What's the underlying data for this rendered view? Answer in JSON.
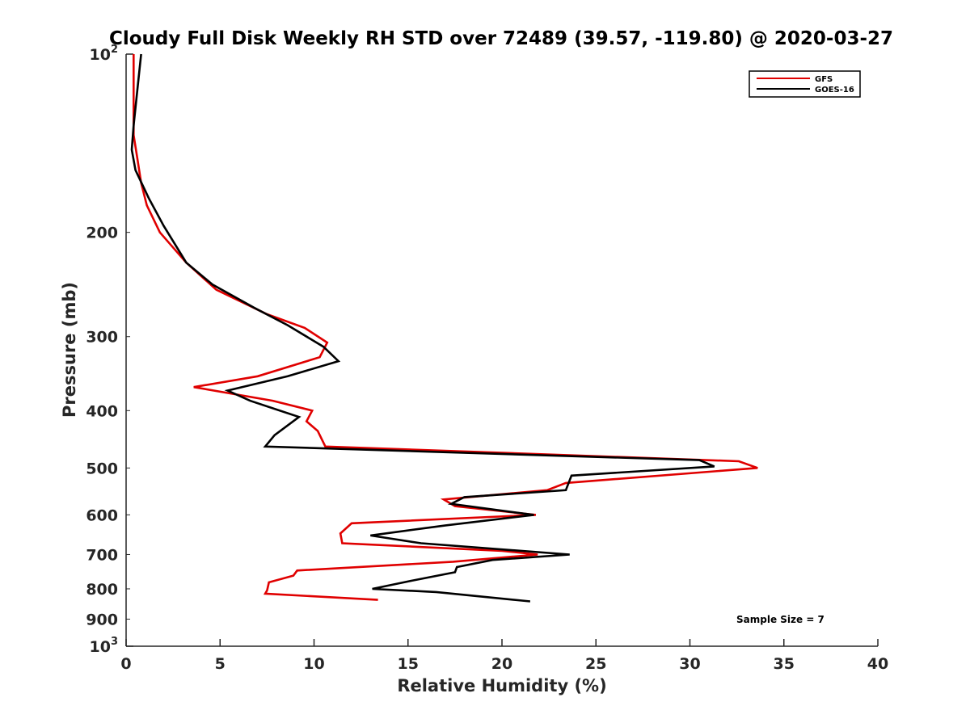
{
  "chart_data": {
    "type": "line",
    "title": "Cloudy Full Disk Weekly RH STD over 72489 (39.57, -119.80) @ 2020-03-27",
    "xlabel": "Relative Humidity (%)",
    "ylabel": "Pressure (mb)",
    "xlim": [
      0,
      40
    ],
    "ylim": [
      100,
      1000
    ],
    "yscale": "log",
    "y_reversed": true,
    "grid": false,
    "legend_position": "top-right",
    "x_ticks": [
      {
        "value": 0,
        "label": "0"
      },
      {
        "value": 5,
        "label": "5"
      },
      {
        "value": 10,
        "label": "10"
      },
      {
        "value": 15,
        "label": "15"
      },
      {
        "value": 20,
        "label": "20"
      },
      {
        "value": 25,
        "label": "25"
      },
      {
        "value": 30,
        "label": "30"
      },
      {
        "value": 35,
        "label": "35"
      },
      {
        "value": 40,
        "label": "40"
      }
    ],
    "y_ticks": [
      {
        "value": 100,
        "base": "10",
        "exp": "2"
      },
      {
        "value": 200,
        "label": "200"
      },
      {
        "value": 300,
        "label": "300"
      },
      {
        "value": 400,
        "label": "400"
      },
      {
        "value": 500,
        "label": "500"
      },
      {
        "value": 600,
        "label": "600"
      },
      {
        "value": 700,
        "label": "700"
      },
      {
        "value": 800,
        "label": "800"
      },
      {
        "value": 900,
        "label": "900"
      },
      {
        "value": 1000,
        "base": "10",
        "exp": "3"
      }
    ],
    "series": [
      {
        "name": "GFS",
        "color": "#e00000",
        "points": [
          [
            0.4,
            100
          ],
          [
            0.4,
            112
          ],
          [
            0.4,
            125
          ],
          [
            0.4,
            137
          ],
          [
            0.6,
            150
          ],
          [
            0.8,
            165
          ],
          [
            1.1,
            180
          ],
          [
            1.8,
            200
          ],
          [
            3.2,
            225
          ],
          [
            4.8,
            250
          ],
          [
            7.5,
            275
          ],
          [
            9.5,
            290
          ],
          [
            10.7,
            307
          ],
          [
            10.3,
            325
          ],
          [
            7.0,
            350
          ],
          [
            3.6,
            365
          ],
          [
            7.8,
            385
          ],
          [
            9.9,
            400
          ],
          [
            9.6,
            417
          ],
          [
            10.2,
            433
          ],
          [
            10.6,
            460
          ],
          [
            32.6,
            487
          ],
          [
            33.6,
            500
          ],
          [
            23.4,
            530
          ],
          [
            22.4,
            545
          ],
          [
            16.9,
            565
          ],
          [
            17.5,
            580
          ],
          [
            21.8,
            600
          ],
          [
            12.0,
            620
          ],
          [
            11.4,
            645
          ],
          [
            11.5,
            670
          ],
          [
            20.0,
            690
          ],
          [
            21.9,
            700
          ],
          [
            17.4,
            720
          ],
          [
            9.1,
            745
          ],
          [
            8.9,
            760
          ],
          [
            7.6,
            780
          ],
          [
            7.5,
            805
          ],
          [
            7.4,
            815
          ],
          [
            13.4,
            835
          ]
        ]
      },
      {
        "name": "GOES-16",
        "color": "#000000",
        "points": [
          [
            0.8,
            100
          ],
          [
            0.6,
            115
          ],
          [
            0.4,
            132
          ],
          [
            0.3,
            145
          ],
          [
            0.5,
            157
          ],
          [
            1.2,
            175
          ],
          [
            2.0,
            195
          ],
          [
            3.2,
            225
          ],
          [
            4.6,
            245
          ],
          [
            6.8,
            268
          ],
          [
            8.6,
            287
          ],
          [
            10.5,
            312
          ],
          [
            11.3,
            330
          ],
          [
            8.6,
            350
          ],
          [
            5.4,
            370
          ],
          [
            6.6,
            385
          ],
          [
            9.2,
            410
          ],
          [
            7.9,
            440
          ],
          [
            7.4,
            460
          ],
          [
            30.5,
            485
          ],
          [
            31.3,
            497
          ],
          [
            23.7,
            515
          ],
          [
            23.4,
            545
          ],
          [
            18.0,
            560
          ],
          [
            17.3,
            575
          ],
          [
            21.7,
            600
          ],
          [
            17.0,
            625
          ],
          [
            13.0,
            650
          ],
          [
            15.7,
            670
          ],
          [
            23.6,
            700
          ],
          [
            19.5,
            715
          ],
          [
            17.6,
            735
          ],
          [
            17.5,
            750
          ],
          [
            15.2,
            775
          ],
          [
            13.1,
            800
          ],
          [
            16.5,
            810
          ],
          [
            21.5,
            840
          ]
        ]
      }
    ],
    "annotations": [
      "Sample Size = 7"
    ]
  }
}
